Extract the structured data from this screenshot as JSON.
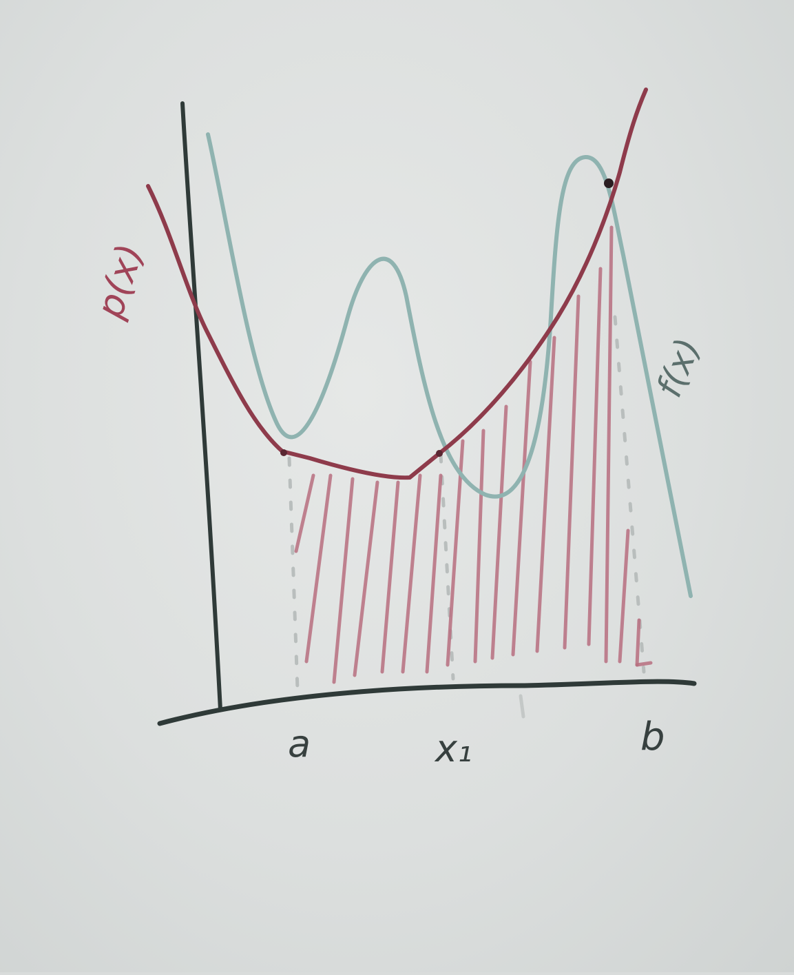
{
  "diagram": {
    "labels": {
      "p_curve": "p(x)",
      "f_curve": "f(x)",
      "tick_a": "a",
      "tick_x1": "x₁",
      "tick_b": "b"
    },
    "colors": {
      "board": "#e3e5e4",
      "axis_ink": "#2f3a38",
      "p_ink": "#8e3b4b",
      "f_ink": "#8fb3b0",
      "hatch_ink": "#b86f80",
      "guide_ink": "#b7bcbb"
    }
  }
}
